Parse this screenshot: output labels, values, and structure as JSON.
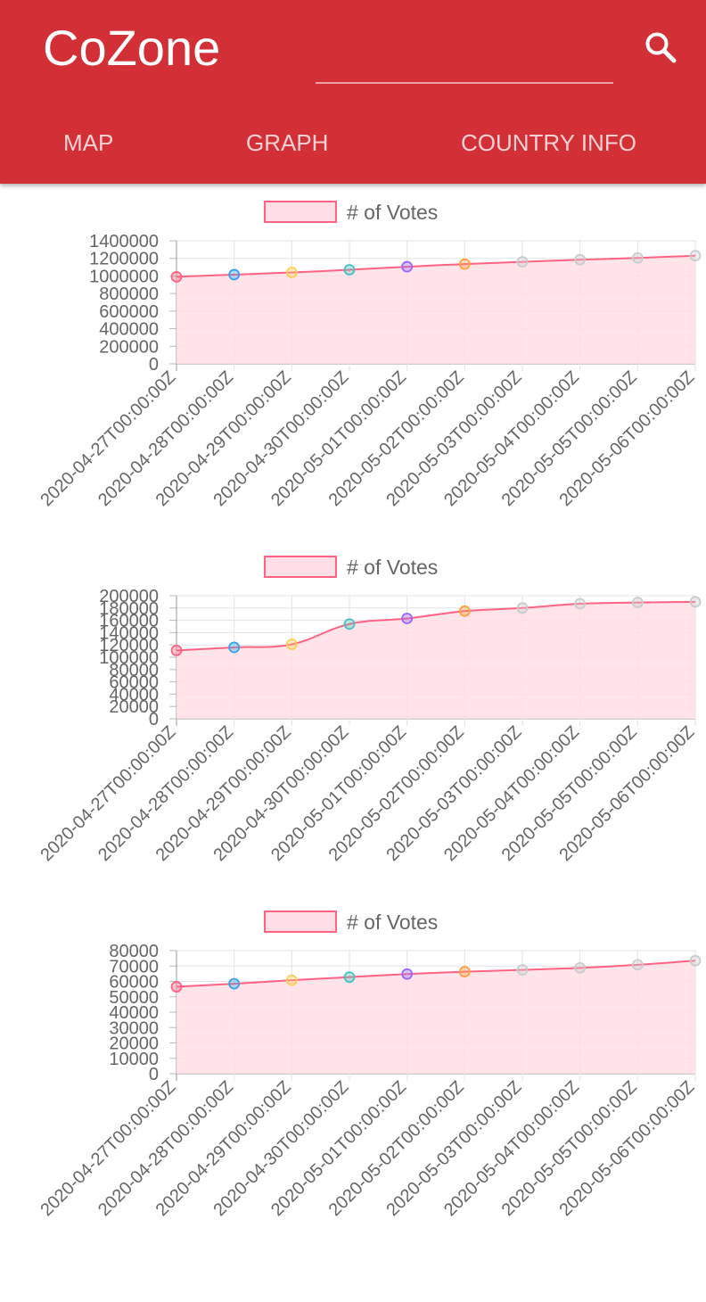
{
  "app": {
    "title": "CoZone"
  },
  "search": {
    "placeholder": "",
    "value": ""
  },
  "tabs": [
    {
      "label": "MAP"
    },
    {
      "label": "GRAPH"
    },
    {
      "label": "COUNTRY INFO"
    }
  ],
  "colors": {
    "appbar": "#d32f37",
    "series_line": "#ff6384",
    "series_fill": "#ffdfe5",
    "point_colors": [
      "#ff6384",
      "#36a2eb",
      "#ffcd56",
      "#4bc0c0",
      "#9966ff",
      "#ff9f40",
      "#c9cbcf",
      "#c9cbcf",
      "#c9cbcf",
      "#c9cbcf"
    ]
  },
  "chart_data": [
    {
      "type": "line",
      "fill": true,
      "legend_position": "top",
      "grid": true,
      "x": [
        "2020-04-27T00:00:00Z",
        "2020-04-28T00:00:00Z",
        "2020-04-29T00:00:00Z",
        "2020-04-30T00:00:00Z",
        "2020-05-01T00:00:00Z",
        "2020-05-02T00:00:00Z",
        "2020-05-03T00:00:00Z",
        "2020-05-04T00:00:00Z",
        "2020-05-05T00:00:00Z",
        "2020-05-06T00:00:00Z"
      ],
      "series": [
        {
          "name": "# of Votes",
          "values": [
            990000,
            1015000,
            1040000,
            1070000,
            1105000,
            1135000,
            1160000,
            1185000,
            1205000,
            1230000
          ]
        }
      ],
      "ylim": [
        0,
        1400000
      ],
      "yticks": [
        0,
        200000,
        400000,
        600000,
        800000,
        1000000,
        1200000,
        1400000
      ]
    },
    {
      "type": "line",
      "fill": true,
      "legend_position": "top",
      "grid": true,
      "x": [
        "2020-04-27T00:00:00Z",
        "2020-04-28T00:00:00Z",
        "2020-04-29T00:00:00Z",
        "2020-04-30T00:00:00Z",
        "2020-05-01T00:00:00Z",
        "2020-05-02T00:00:00Z",
        "2020-05-03T00:00:00Z",
        "2020-05-04T00:00:00Z",
        "2020-05-05T00:00:00Z",
        "2020-05-06T00:00:00Z"
      ],
      "series": [
        {
          "name": "# of Votes",
          "values": [
            111000,
            116000,
            121000,
            154000,
            163000,
            175000,
            180000,
            187000,
            189000,
            190000
          ]
        }
      ],
      "ylim": [
        0,
        200000
      ],
      "yticks": [
        0,
        20000,
        40000,
        60000,
        80000,
        100000,
        120000,
        140000,
        160000,
        180000,
        200000
      ]
    },
    {
      "type": "line",
      "fill": true,
      "legend_position": "top",
      "grid": true,
      "x": [
        "2020-04-27T00:00:00Z",
        "2020-04-28T00:00:00Z",
        "2020-04-29T00:00:00Z",
        "2020-04-30T00:00:00Z",
        "2020-05-01T00:00:00Z",
        "2020-05-02T00:00:00Z",
        "2020-05-03T00:00:00Z",
        "2020-05-04T00:00:00Z",
        "2020-05-05T00:00:00Z",
        "2020-05-06T00:00:00Z"
      ],
      "series": [
        {
          "name": "# of Votes",
          "values": [
            56500,
            58500,
            60800,
            62800,
            64800,
            66300,
            67500,
            68800,
            70800,
            73500
          ]
        }
      ],
      "ylim": [
        0,
        80000
      ],
      "yticks": [
        0,
        10000,
        20000,
        30000,
        40000,
        50000,
        60000,
        70000,
        80000
      ]
    }
  ]
}
